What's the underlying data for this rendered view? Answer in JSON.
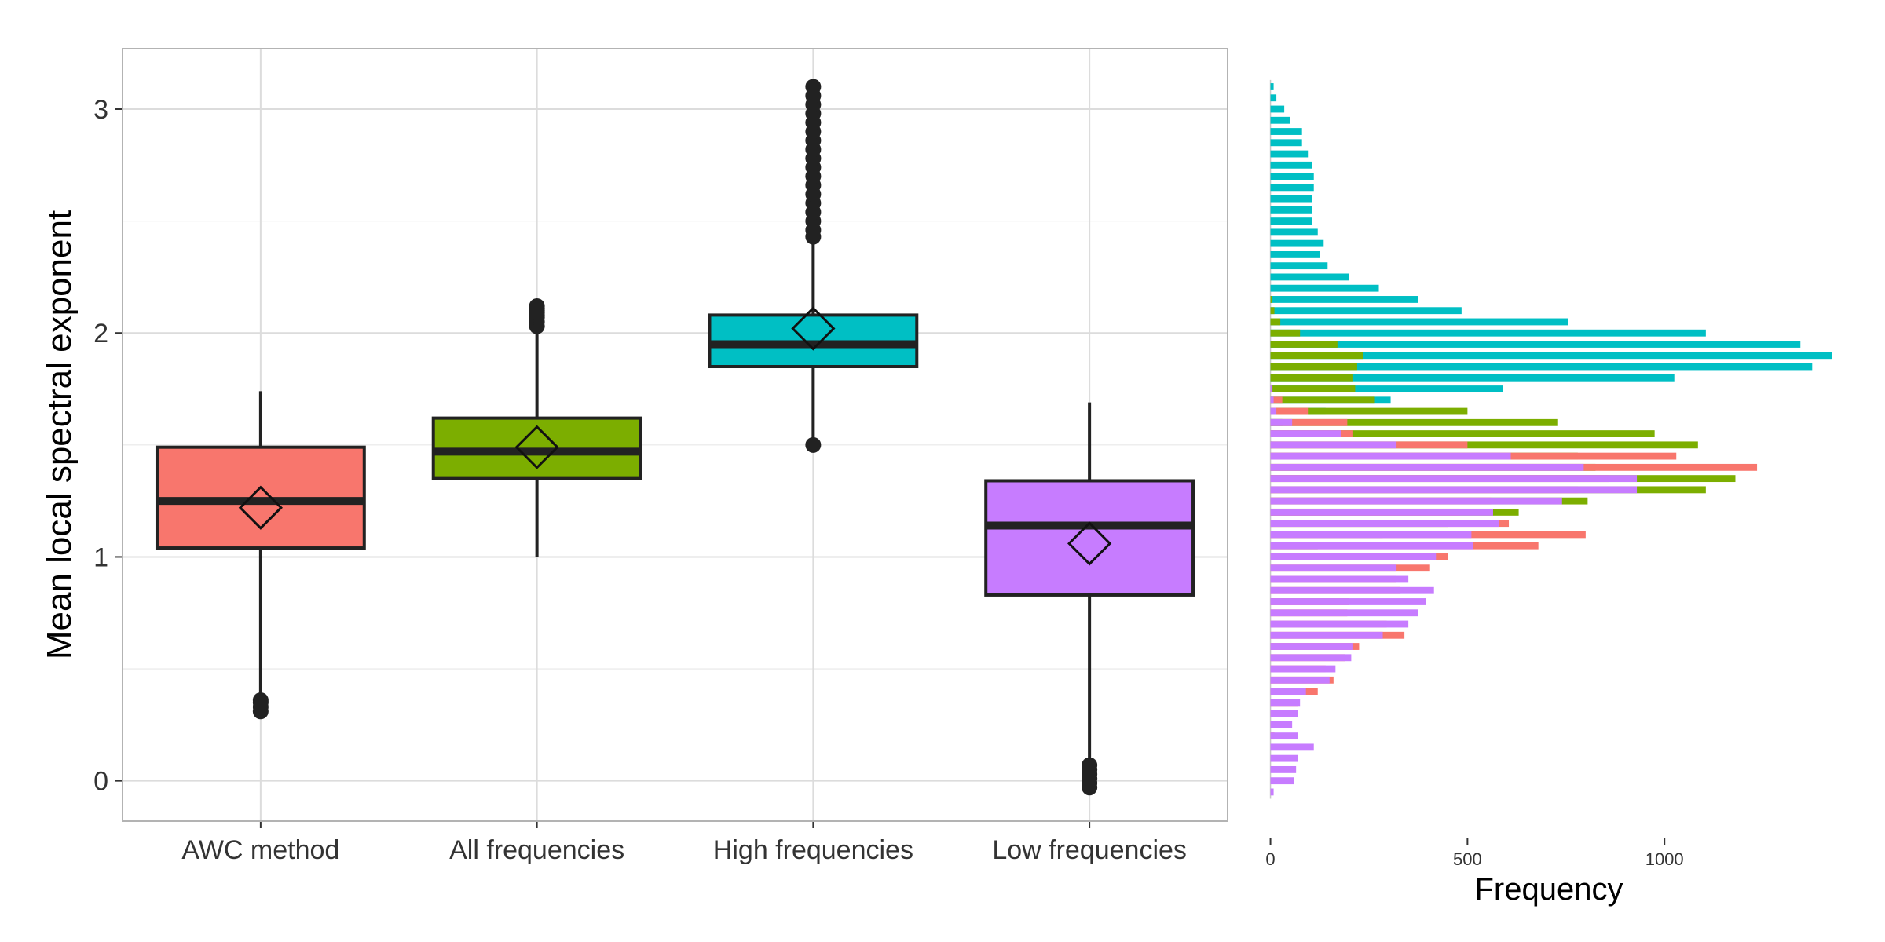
{
  "chart_data": [
    {
      "type": "box",
      "ylabel": "Mean local spectral exponent",
      "ylim": [
        -0.18,
        3.27
      ],
      "yticks": [
        0,
        1,
        2,
        3
      ],
      "grid": true,
      "categories": [
        "AWC method",
        "All frequencies",
        "High frequencies",
        "Low frequencies"
      ],
      "boxes": [
        {
          "category": "AWC method",
          "color": "#F8766D",
          "q1": 1.04,
          "median": 1.25,
          "q3": 1.49,
          "mean": 1.22,
          "whisker_low": 0.36,
          "whisker_high": 1.74,
          "outliers": [
            0.31,
            0.33,
            0.35,
            0.36
          ]
        },
        {
          "category": "All frequencies",
          "color": "#7CAE00",
          "q1": 1.35,
          "median": 1.47,
          "q3": 1.62,
          "mean": 1.49,
          "whisker_low": 1.0,
          "whisker_high": 2.03,
          "outliers": [
            2.03,
            2.05,
            2.07,
            2.08,
            2.09,
            2.1,
            2.11,
            2.12
          ]
        },
        {
          "category": "High frequencies",
          "color": "#00BFC4",
          "q1": 1.85,
          "median": 1.95,
          "q3": 2.08,
          "mean": 2.02,
          "whisker_low": 1.52,
          "whisker_high": 2.43,
          "outliers": [
            1.5,
            2.43,
            2.46,
            2.5,
            2.54,
            2.58,
            2.62,
            2.66,
            2.7,
            2.74,
            2.78,
            2.82,
            2.86,
            2.9,
            2.94,
            2.98,
            3.02,
            3.06,
            3.1
          ]
        },
        {
          "category": "Low frequencies",
          "color": "#C77CFF",
          "q1": 0.83,
          "median": 1.14,
          "q3": 1.34,
          "mean": 1.06,
          "whisker_low": 0.07,
          "whisker_high": 1.69,
          "outliers": [
            -0.03,
            -0.01,
            0.01,
            0.03,
            0.05,
            0.07
          ]
        }
      ]
    },
    {
      "type": "bar",
      "orientation": "horizontal",
      "xlabel": "Frequency",
      "xticks": [
        0,
        500,
        1000
      ],
      "xlim": [
        -35,
        1500
      ],
      "shares_y_axis_with": "boxplot",
      "bin_width": 0.05,
      "series": [
        {
          "color": "#00BFC4",
          "bins": [
            [
              3.1,
              8
            ],
            [
              3.05,
              15
            ],
            [
              3.0,
              35
            ],
            [
              2.95,
              50
            ],
            [
              2.9,
              80
            ],
            [
              2.85,
              80
            ],
            [
              2.8,
              95
            ],
            [
              2.75,
              105
            ],
            [
              2.7,
              110
            ],
            [
              2.65,
              110
            ],
            [
              2.6,
              105
            ],
            [
              2.55,
              105
            ],
            [
              2.5,
              105
            ],
            [
              2.45,
              120
            ],
            [
              2.4,
              135
            ],
            [
              2.35,
              125
            ],
            [
              2.3,
              145
            ],
            [
              2.25,
              200
            ],
            [
              2.2,
              275
            ],
            [
              2.15,
              375
            ],
            [
              2.1,
              485
            ],
            [
              2.05,
              755
            ],
            [
              2.0,
              1105
            ],
            [
              1.95,
              1345
            ],
            [
              1.9,
              1425
            ],
            [
              1.85,
              1375
            ],
            [
              1.8,
              1025
            ],
            [
              1.75,
              590
            ],
            [
              1.7,
              305
            ],
            [
              1.65,
              140
            ],
            [
              1.6,
              30
            ],
            [
              1.55,
              8
            ],
            [
              1.5,
              3
            ]
          ]
        },
        {
          "color": "#7CAE00",
          "bins": [
            [
              2.15,
              5
            ],
            [
              2.1,
              10
            ],
            [
              2.05,
              25
            ],
            [
              2.0,
              75
            ],
            [
              1.95,
              170
            ],
            [
              1.9,
              235
            ],
            [
              1.85,
              220
            ],
            [
              1.8,
              210
            ],
            [
              1.75,
              215
            ],
            [
              1.7,
              265
            ],
            [
              1.65,
              500
            ],
            [
              1.6,
              730
            ],
            [
              1.55,
              975
            ],
            [
              1.5,
              1085
            ],
            [
              1.45,
              780
            ],
            [
              1.4,
              825
            ],
            [
              1.35,
              1180
            ],
            [
              1.3,
              1105
            ],
            [
              1.25,
              805
            ],
            [
              1.2,
              630
            ],
            [
              1.15,
              450
            ],
            [
              1.1,
              285
            ],
            [
              1.05,
              120
            ],
            [
              1.0,
              90
            ]
          ]
        },
        {
          "color": "#F8766D",
          "bins": [
            [
              1.75,
              5
            ],
            [
              1.7,
              30
            ],
            [
              1.65,
              95
            ],
            [
              1.6,
              195
            ],
            [
              1.55,
              210
            ],
            [
              1.5,
              500
            ],
            [
              1.45,
              1030
            ],
            [
              1.4,
              1235
            ],
            [
              1.35,
              860
            ],
            [
              1.3,
              780
            ],
            [
              1.25,
              560
            ],
            [
              1.2,
              480
            ],
            [
              1.15,
              605
            ],
            [
              1.1,
              800
            ],
            [
              1.05,
              680
            ],
            [
              1.0,
              450
            ],
            [
              0.95,
              405
            ],
            [
              0.9,
              320
            ],
            [
              0.85,
              330
            ],
            [
              0.8,
              200
            ],
            [
              0.75,
              195
            ],
            [
              0.7,
              295
            ],
            [
              0.65,
              340
            ],
            [
              0.6,
              225
            ],
            [
              0.55,
              190
            ],
            [
              0.5,
              140
            ],
            [
              0.45,
              160
            ],
            [
              0.4,
              120
            ],
            [
              0.35,
              70
            ],
            [
              0.3,
              15
            ],
            [
              0.25,
              30
            ],
            [
              0.2,
              10
            ]
          ]
        },
        {
          "color": "#C77CFF",
          "bins": [
            [
              1.75,
              5
            ],
            [
              1.7,
              8
            ],
            [
              1.65,
              15
            ],
            [
              1.6,
              55
            ],
            [
              1.55,
              180
            ],
            [
              1.5,
              320
            ],
            [
              1.45,
              610
            ],
            [
              1.4,
              795
            ],
            [
              1.35,
              930
            ],
            [
              1.3,
              930
            ],
            [
              1.25,
              740
            ],
            [
              1.2,
              565
            ],
            [
              1.15,
              580
            ],
            [
              1.1,
              510
            ],
            [
              1.05,
              515
            ],
            [
              1.0,
              420
            ],
            [
              0.95,
              320
            ],
            [
              0.9,
              350
            ],
            [
              0.85,
              415
            ],
            [
              0.8,
              395
            ],
            [
              0.75,
              375
            ],
            [
              0.7,
              350
            ],
            [
              0.65,
              285
            ],
            [
              0.6,
              210
            ],
            [
              0.55,
              205
            ],
            [
              0.5,
              165
            ],
            [
              0.45,
              150
            ],
            [
              0.4,
              90
            ],
            [
              0.35,
              75
            ],
            [
              0.3,
              70
            ],
            [
              0.25,
              55
            ],
            [
              0.2,
              70
            ],
            [
              0.15,
              110
            ],
            [
              0.1,
              70
            ],
            [
              0.05,
              65
            ],
            [
              0.0,
              60
            ],
            [
              -0.05,
              8
            ]
          ]
        }
      ]
    }
  ]
}
